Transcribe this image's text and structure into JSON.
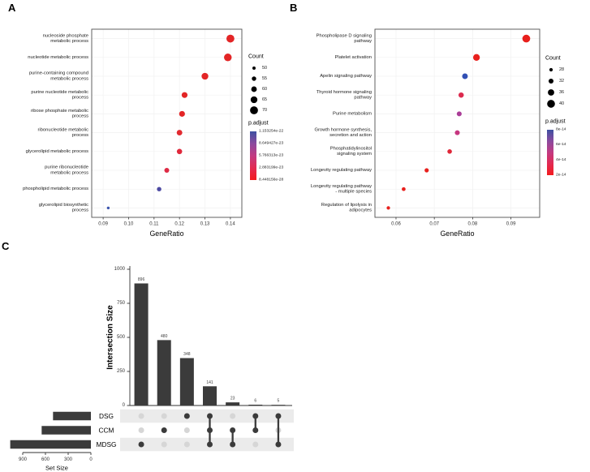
{
  "panel_labels": {
    "A": "A",
    "B": "B",
    "C": "C"
  },
  "chart_data": [
    {
      "id": "A",
      "type": "scatter",
      "xlabel": "GeneRatio",
      "xdomain": [
        0.0855,
        0.1445
      ],
      "xticks": [
        {
          "v": 0.09,
          "label": "0.09"
        },
        {
          "v": 0.1,
          "label": "0.10"
        },
        {
          "v": 0.11,
          "label": "0.11"
        },
        {
          "v": 0.12,
          "label": "0.12"
        },
        {
          "v": 0.13,
          "label": "0.13"
        },
        {
          "v": 0.14,
          "label": "0.14"
        }
      ],
      "rows": [
        {
          "label_lines": [
            "nucleoside phosphate",
            "metabolic process"
          ],
          "x": 0.14,
          "count": 70,
          "color": "#e32526"
        },
        {
          "label_lines": [
            "nucleotide metabolic process"
          ],
          "x": 0.139,
          "count": 69,
          "color": "#e32526"
        },
        {
          "label_lines": [
            "purine-containing compound",
            "metabolic process"
          ],
          "x": 0.13,
          "count": 65,
          "color": "#e32526"
        },
        {
          "label_lines": [
            "purine nucleotide metabolic",
            "process"
          ],
          "x": 0.122,
          "count": 61,
          "color": "#e32526"
        },
        {
          "label_lines": [
            "ribose phosphate metabolic",
            "process"
          ],
          "x": 0.121,
          "count": 61,
          "color": "#e32526"
        },
        {
          "label_lines": [
            "ribonucleotide metabolic",
            "process"
          ],
          "x": 0.12,
          "count": 60,
          "color": "#e22a30"
        },
        {
          "label_lines": [
            "glycerolipid metabolic process"
          ],
          "x": 0.12,
          "count": 59,
          "color": "#e0283b"
        },
        {
          "label_lines": [
            "purine ribonucleotide",
            "metabolic process"
          ],
          "x": 0.115,
          "count": 57,
          "color": "#de2a44"
        },
        {
          "label_lines": [
            "phospholipid metabolic process"
          ],
          "x": 0.112,
          "count": 55,
          "color": "#4c49a2"
        },
        {
          "label_lines": [
            "glycerolipid biosynthetic",
            "process"
          ],
          "x": 0.092,
          "count": 48,
          "color": "#3c55ae"
        }
      ],
      "count_legend": {
        "title": "Count",
        "items": [
          {
            "count": 50,
            "label": "50"
          },
          {
            "count": 55,
            "label": "55"
          },
          {
            "count": 60,
            "label": "60"
          },
          {
            "count": 65,
            "label": "65"
          },
          {
            "count": 70,
            "label": "70"
          }
        ]
      },
      "padjust_legend": {
        "title": "p.adjust",
        "labels": [
          "1.153254e-22",
          "8.649427e-23",
          "5.766313e-23",
          "2.883199e-23",
          "8.448156e-28"
        ],
        "gradient": [
          "#3d50a2",
          "#8a4a9e",
          "#c23b82",
          "#e22a52",
          "#f31b1e"
        ]
      }
    },
    {
      "id": "B",
      "type": "scatter",
      "xlabel": "GeneRatio",
      "xdomain": [
        0.0545,
        0.0975
      ],
      "xticks": [
        {
          "v": 0.06,
          "label": "0.06"
        },
        {
          "v": 0.07,
          "label": "0.07"
        },
        {
          "v": 0.08,
          "label": "0.08"
        },
        {
          "v": 0.09,
          "label": "0.09"
        }
      ],
      "rows": [
        {
          "label_lines": [
            "Phospholipase D signaling",
            "pathway"
          ],
          "x": 0.094,
          "count": 40,
          "color": "#e8201d"
        },
        {
          "label_lines": [
            "Platelet activation"
          ],
          "x": 0.081,
          "count": 37,
          "color": "#e8201d"
        },
        {
          "label_lines": [
            "Apelin signaling pathway"
          ],
          "x": 0.078,
          "count": 34,
          "color": "#3250b4"
        },
        {
          "label_lines": [
            "Thyroid hormone signaling",
            "pathway"
          ],
          "x": 0.077,
          "count": 33,
          "color": "#dc2a4e"
        },
        {
          "label_lines": [
            "Purine metabolism"
          ],
          "x": 0.0765,
          "count": 32,
          "color": "#aa3d97"
        },
        {
          "label_lines": [
            "Growth hormone synthesis,",
            "secretion and action"
          ],
          "x": 0.076,
          "count": 32,
          "color": "#c63680"
        },
        {
          "label_lines": [
            "Phosphatidylinositol",
            "signaling system"
          ],
          "x": 0.074,
          "count": 31,
          "color": "#e02739"
        },
        {
          "label_lines": [
            "Longevity regulating pathway"
          ],
          "x": 0.068,
          "count": 30,
          "color": "#e8201d"
        },
        {
          "label_lines": [
            "Longevity regulating pathway",
            "- multiple species"
          ],
          "x": 0.062,
          "count": 29,
          "color": "#e8201d"
        },
        {
          "label_lines": [
            "Regulation of lipolysis in",
            "adipocytes"
          ],
          "x": 0.058,
          "count": 28,
          "color": "#e8201d"
        }
      ],
      "count_legend": {
        "title": "Count",
        "items": [
          {
            "count": 28,
            "label": "28"
          },
          {
            "count": 32,
            "label": "32"
          },
          {
            "count": 36,
            "label": "36"
          },
          {
            "count": 40,
            "label": "40"
          }
        ]
      },
      "padjust_legend": {
        "title": "p.adjust",
        "labels": [
          "8e-14",
          "6e-14",
          "4e-14",
          "2e-14"
        ],
        "gradient": [
          "#3d50a2",
          "#8a4a9e",
          "#c23b82",
          "#e22a52",
          "#f31b1e"
        ]
      }
    },
    {
      "id": "C",
      "type": "upset",
      "ylabel": "Intersection Size",
      "yticks": [
        {
          "v": 0,
          "label": "0"
        },
        {
          "v": 250,
          "label": "250"
        },
        {
          "v": 500,
          "label": "500"
        },
        {
          "v": 750,
          "label": "750"
        },
        {
          "v": 1000,
          "label": "1000"
        }
      ],
      "sets": [
        {
          "name": "DSG",
          "size": 500
        },
        {
          "name": "CCM",
          "size": 650
        },
        {
          "name": "MDSG",
          "size": 1065
        }
      ],
      "set_size_axis": {
        "label": "Set Size",
        "ticks": [
          {
            "v": 900,
            "label": "900"
          },
          {
            "v": 600,
            "label": "600"
          },
          {
            "v": 300,
            "label": "300"
          },
          {
            "v": 0,
            "label": "0"
          }
        ]
      },
      "intersections": [
        {
          "value": 896,
          "label": "896",
          "sets": [
            "MDSG"
          ]
        },
        {
          "value": 480,
          "label": "480",
          "sets": [
            "CCM"
          ]
        },
        {
          "value": 348,
          "label": "348",
          "sets": [
            "DSG"
          ]
        },
        {
          "value": 141,
          "label": "141",
          "sets": [
            "DSG",
            "CCM",
            "MDSG"
          ]
        },
        {
          "value": 23,
          "label": "23",
          "sets": [
            "CCM",
            "MDSG"
          ]
        },
        {
          "value": 6,
          "label": "6",
          "sets": [
            "DSG",
            "CCM"
          ]
        },
        {
          "value": 5,
          "label": "5",
          "sets": [
            "DSG",
            "MDSG"
          ]
        }
      ],
      "colors": {
        "bar": "#3b3b3b",
        "dot_inactive": "#d6d6d6"
      }
    }
  ]
}
